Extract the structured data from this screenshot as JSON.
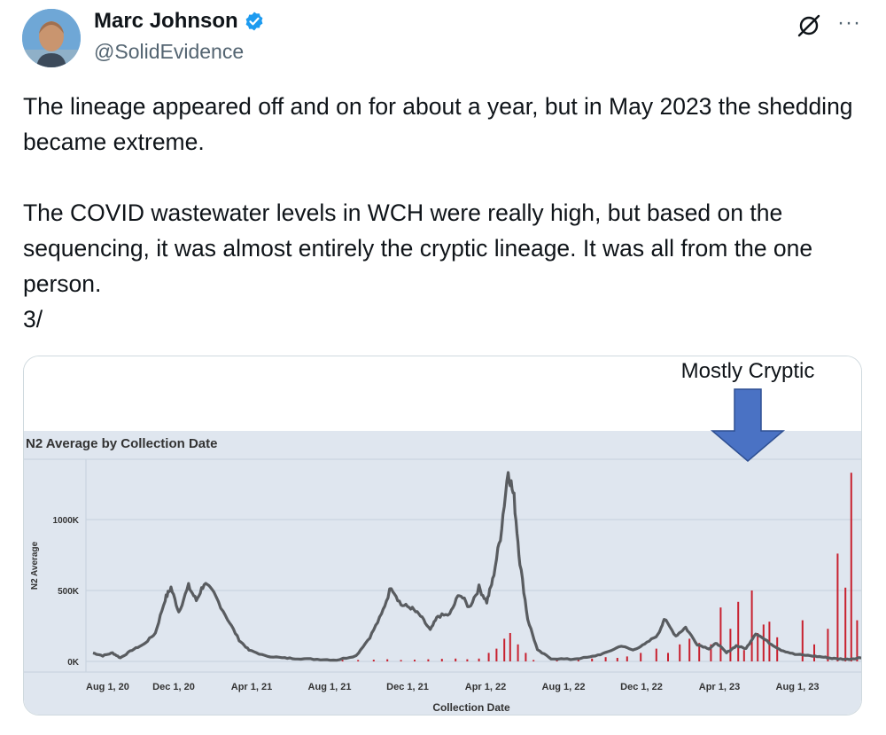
{
  "author": {
    "name": "Marc Johnson",
    "handle": "@SolidEvidence",
    "verified_color": "#1d9bf0"
  },
  "icons": {
    "grok": "grok-icon",
    "more": "more-options-icon",
    "verified": "verified-badge-icon"
  },
  "more_label": "···",
  "tweet": {
    "paragraphs": [
      "The lineage appeared off and on for about a year, but in May 2023 the shedding became extreme.",
      "The COVID wastewater levels in WCH were really high, but based on the sequencing, it was almost entirely the cryptic lineage.  It was all from the one person.",
      "3/"
    ]
  },
  "colors": {
    "plot_bg": "#dfe6ef",
    "line": "#595c60",
    "bars": "#c8212f",
    "arrow": "#4a72c4"
  },
  "chart_data": {
    "type": "line",
    "title": "N2 Average by Collection Date",
    "xlabel": "Collection Date",
    "ylabel": "N2 Average",
    "annotation": "Mostly Cryptic",
    "x_ticks": [
      "Aug 1, 20",
      "Dec 1, 20",
      "Apr 1, 21",
      "Aug 1, 21",
      "Dec 1, 21",
      "Apr 1, 22",
      "Aug 1, 22",
      "Dec 1, 22",
      "Apr 1, 23",
      "Aug 1, 23"
    ],
    "y_ticks": [
      "0K",
      "500K",
      "1000K"
    ],
    "ylim": [
      0,
      1400
    ],
    "x_range_months": [
      0,
      40
    ],
    "series": [
      {
        "values_month_k": [
          [
            0,
            60
          ],
          [
            0.5,
            40
          ],
          [
            1,
            60
          ],
          [
            1.4,
            25
          ],
          [
            2,
            80
          ],
          [
            2.6,
            120
          ],
          [
            3.2,
            200
          ],
          [
            3.7,
            440
          ],
          [
            4,
            520
          ],
          [
            4.4,
            350
          ],
          [
            4.9,
            530
          ],
          [
            5.3,
            430
          ],
          [
            5.7,
            550
          ],
          [
            6.2,
            480
          ],
          [
            6.9,
            300
          ],
          [
            7.5,
            150
          ],
          [
            8,
            80
          ],
          [
            8.8,
            40
          ],
          [
            9.7,
            25
          ],
          [
            10.5,
            20
          ],
          [
            11.5,
            15
          ],
          [
            12.5,
            10
          ],
          [
            13.5,
            40
          ],
          [
            14.2,
            170
          ],
          [
            14.8,
            330
          ],
          [
            15.3,
            530
          ],
          [
            15.8,
            400
          ],
          [
            16.3,
            380
          ],
          [
            16.8,
            320
          ],
          [
            17.3,
            220
          ],
          [
            17.7,
            320
          ],
          [
            18.3,
            330
          ],
          [
            18.8,
            480
          ],
          [
            19.3,
            380
          ],
          [
            19.8,
            520
          ],
          [
            20.2,
            420
          ],
          [
            20.5,
            570
          ],
          [
            20.9,
            880
          ],
          [
            21.3,
            1350
          ],
          [
            21.6,
            1150
          ],
          [
            21.9,
            700
          ],
          [
            22.3,
            300
          ],
          [
            22.8,
            80
          ],
          [
            23.5,
            20
          ],
          [
            24.5,
            15
          ],
          [
            25.5,
            30
          ],
          [
            26.3,
            60
          ],
          [
            27.1,
            110
          ],
          [
            27.7,
            80
          ],
          [
            28.3,
            120
          ],
          [
            29,
            190
          ],
          [
            29.3,
            300
          ],
          [
            29.9,
            180
          ],
          [
            30.4,
            240
          ],
          [
            31,
            120
          ],
          [
            31.6,
            90
          ],
          [
            32,
            130
          ],
          [
            32.5,
            60
          ],
          [
            33,
            110
          ],
          [
            33.5,
            90
          ],
          [
            34,
            200
          ],
          [
            34.7,
            130
          ],
          [
            35.3,
            80
          ],
          [
            36,
            50
          ],
          [
            36.8,
            40
          ],
          [
            37.5,
            30
          ],
          [
            38,
            20
          ],
          [
            38.7,
            15
          ],
          [
            39.3,
            25
          ],
          [
            40,
            30
          ],
          [
            40.5,
            50
          ],
          [
            41,
            80
          ],
          [
            41.4,
            70
          ]
        ]
      }
    ],
    "bars_month_k": [
      [
        12.8,
        10
      ],
      [
        13.6,
        10
      ],
      [
        14.4,
        12
      ],
      [
        15.1,
        15
      ],
      [
        15.8,
        10
      ],
      [
        16.5,
        12
      ],
      [
        17.2,
        15
      ],
      [
        17.9,
        18
      ],
      [
        18.6,
        20
      ],
      [
        19.2,
        15
      ],
      [
        19.8,
        20
      ],
      [
        20.3,
        60
      ],
      [
        20.7,
        90
      ],
      [
        21.1,
        160
      ],
      [
        21.4,
        200
      ],
      [
        21.8,
        120
      ],
      [
        22.2,
        60
      ],
      [
        22.6,
        10
      ],
      [
        23.8,
        10
      ],
      [
        24.9,
        12
      ],
      [
        25.6,
        20
      ],
      [
        26.3,
        30
      ],
      [
        26.9,
        25
      ],
      [
        27.4,
        35
      ],
      [
        28.1,
        60
      ],
      [
        28.9,
        90
      ],
      [
        29.5,
        60
      ],
      [
        30.1,
        120
      ],
      [
        30.6,
        160
      ],
      [
        31.1,
        130
      ],
      [
        31.7,
        120
      ],
      [
        32.2,
        380
      ],
      [
        32.7,
        230
      ],
      [
        33.1,
        420
      ],
      [
        33.4,
        80
      ],
      [
        33.8,
        500
      ],
      [
        34.1,
        200
      ],
      [
        34.4,
        260
      ],
      [
        34.7,
        280
      ],
      [
        35.1,
        170
      ],
      [
        36.4,
        290
      ],
      [
        37.0,
        120
      ],
      [
        37.7,
        230
      ],
      [
        38.2,
        760
      ],
      [
        38.6,
        520
      ],
      [
        38.9,
        1330
      ],
      [
        39.2,
        290
      ],
      [
        39.5,
        380
      ],
      [
        39.8,
        500
      ],
      [
        40.1,
        40
      ],
      [
        40.6,
        35
      ],
      [
        41.1,
        60
      ],
      [
        41.4,
        90
      ]
    ]
  }
}
